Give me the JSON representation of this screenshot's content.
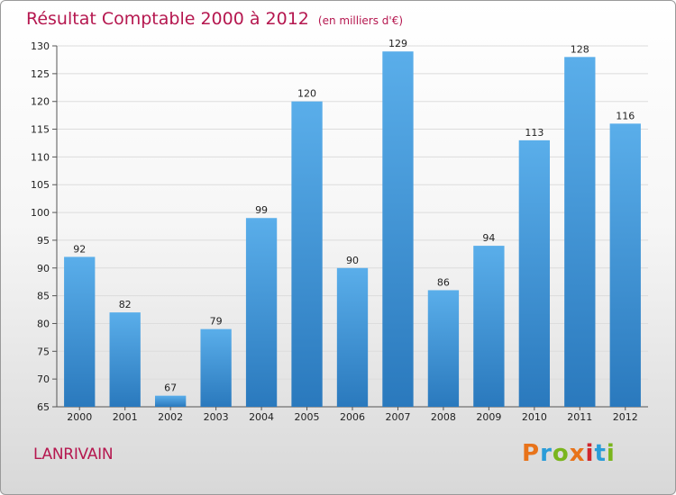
{
  "chart_data": {
    "type": "bar",
    "title": "Résultat Comptable 2000 à 2012",
    "unit_note": "(en milliers d'€)",
    "categories": [
      "2000",
      "2001",
      "2002",
      "2003",
      "2004",
      "2005",
      "2006",
      "2007",
      "2008",
      "2009",
      "2010",
      "2011",
      "2012"
    ],
    "values": [
      92,
      82,
      67,
      79,
      99,
      120,
      90,
      129,
      86,
      94,
      113,
      128,
      116
    ],
    "ylim": [
      65,
      130
    ],
    "yticks": [
      65,
      70,
      75,
      80,
      85,
      90,
      95,
      100,
      105,
      110,
      115,
      120,
      125,
      130
    ],
    "xlabel": "",
    "ylabel": "",
    "grid": true,
    "bar_color": "#3f8fd2"
  },
  "footer": {
    "commune": "LANRIVAIN",
    "logo_text": "Proxiti",
    "logo_colors": [
      "#e8731a",
      "#2a9cd8",
      "#7ab51d",
      "#e8731a",
      "#d0262d",
      "#2a9cd8",
      "#7ab51d"
    ]
  }
}
